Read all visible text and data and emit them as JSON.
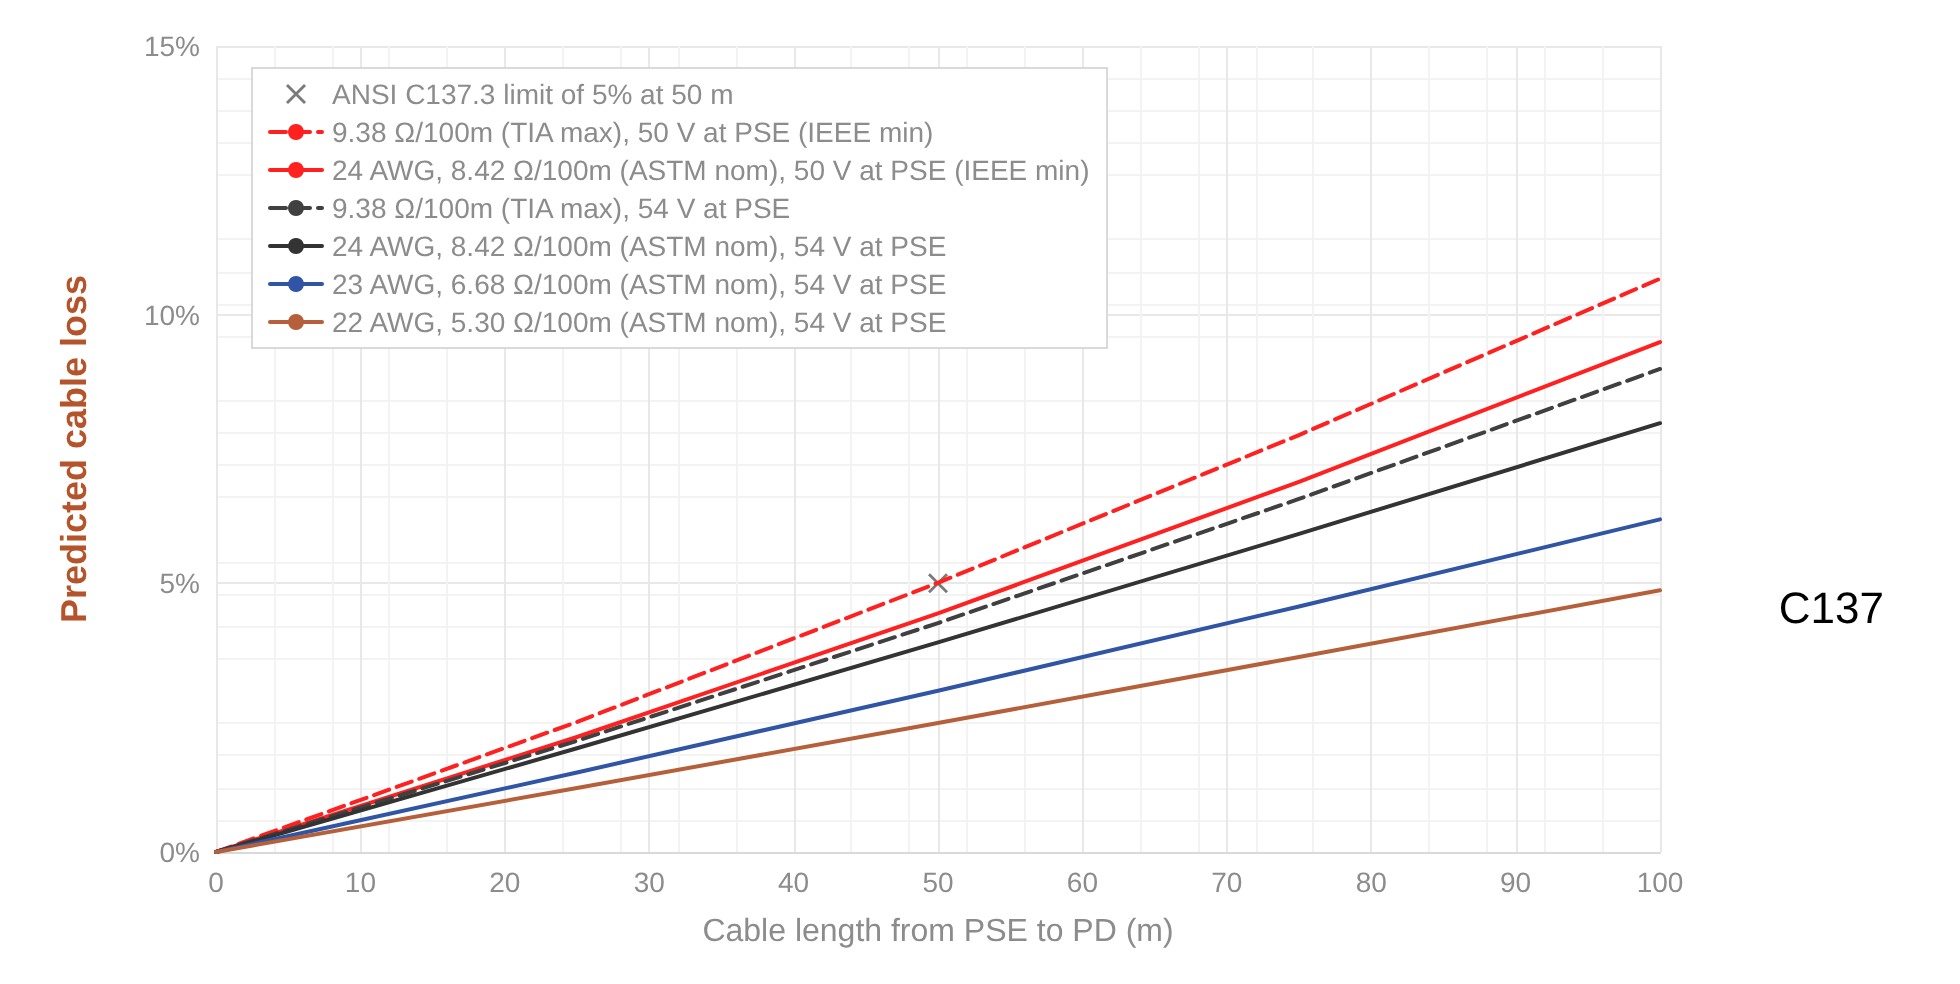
{
  "chart_data": {
    "type": "line",
    "xlabel": "Cable length from PSE to PD (m)",
    "ylabel": "Predicted cable loss",
    "xlim": [
      0,
      100
    ],
    "xticks": [
      0,
      10,
      20,
      30,
      40,
      50,
      60,
      70,
      80,
      90,
      100
    ],
    "ylim": [
      0,
      15
    ],
    "yticks": [
      {
        "value": 0,
        "label": "0%"
      },
      {
        "value": 5,
        "label": "5%"
      },
      {
        "value": 10,
        "label": "10%"
      },
      {
        "value": 15,
        "label": "15%"
      }
    ],
    "grid": true,
    "legend": "top left",
    "marker": "none",
    "x": [
      0,
      25,
      50,
      75,
      100
    ],
    "series": [
      {
        "name": "ANSI C137.3 limit of 5% at 50 m",
        "type": "scatter",
        "marker": "cross",
        "color": "#595959",
        "x": [
          50
        ],
        "values": [
          5
        ]
      },
      {
        "name": "9.38 Ω/100m (TIA max), 50 V at PSE (IEEE min)",
        "color": "#ff2020",
        "line_style": "dashed",
        "values": [
          0,
          2.42,
          5.01,
          7.76,
          10.67
        ]
      },
      {
        "name": "24 AWG, 8.42 Ω/100m (ASTM nom), 50 V at PSE (IEEE min)",
        "color": "#ff2020",
        "line_style": "solid",
        "values": [
          0,
          2.14,
          4.44,
          6.89,
          9.49
        ]
      },
      {
        "name": "9.38 Ω/100m (TIA max), 54 V at PSE",
        "color": "#404040",
        "line_style": "dashed",
        "values": [
          0,
          2.07,
          4.26,
          6.57,
          8.99
        ]
      },
      {
        "name": "24 AWG, 8.42 Ω/100m (ASTM nom), 54 V at PSE",
        "color": "#333333",
        "line_style": "solid",
        "values": [
          0,
          1.93,
          3.9,
          5.92,
          7.98
        ]
      },
      {
        "name": "23 AWG, 6.68 Ω/100m (ASTM nom), 54 V at PSE",
        "color": "#2f55a4",
        "line_style": "solid",
        "values": [
          0,
          1.48,
          3.0,
          4.57,
          6.19
        ]
      },
      {
        "name": "22 AWG, 5.30 Ω/100m (ASTM nom), 54 V at PSE",
        "color": "#b5603a",
        "line_style": "solid",
        "values": [
          0,
          1.19,
          2.4,
          3.63,
          4.87
        ]
      }
    ],
    "annotations": [
      "C137"
    ]
  }
}
